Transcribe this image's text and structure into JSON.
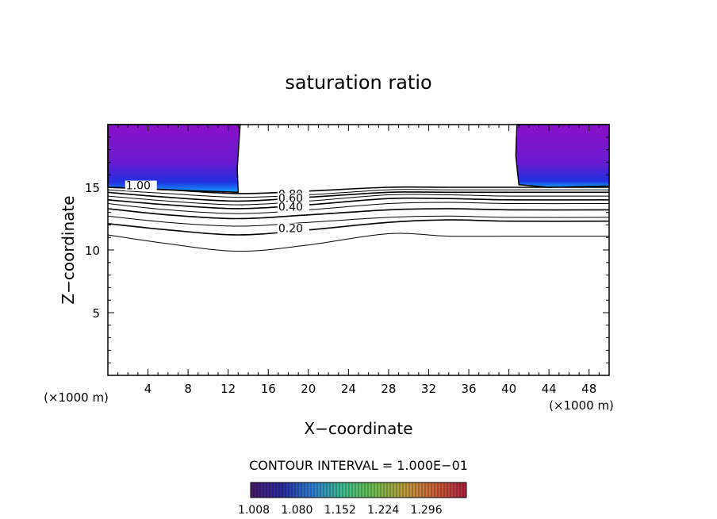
{
  "chart_data": {
    "type": "contour",
    "title": "saturation ratio",
    "xlabel": "X−coordinate",
    "ylabel": "Z−coordinate",
    "x_unit_label": "(×1000 m)",
    "z_unit_label": "(×1000 m)",
    "xlim": [
      0,
      50
    ],
    "ylim": [
      0,
      20
    ],
    "xticks": [
      4,
      8,
      12,
      16,
      20,
      24,
      28,
      32,
      36,
      40,
      44,
      48
    ],
    "yticks": [
      5,
      10,
      15
    ],
    "contour_interval_text": "CONTOUR INTERVAL = 1.000E−01",
    "colorbar": {
      "tick_labels": [
        "1.008",
        "1.080",
        "1.152",
        "1.224",
        "1.296"
      ],
      "colors": [
        "#4a1a6e",
        "#2a2aa0",
        "#2f7fd6",
        "#3fbf8f",
        "#6fbf4f",
        "#bf9f3f",
        "#d0603a",
        "#b01f3f"
      ]
    },
    "fill_color_outer": "#7f10c0",
    "fill_color_inner": "#1030e0",
    "contour_labels": [
      {
        "text": "1.00",
        "x": 1.8,
        "z": 14.9
      },
      {
        "text": "0.80",
        "x": 17.0,
        "z": 14.2
      },
      {
        "text": "0.60",
        "x": 17.0,
        "z": 13.9
      },
      {
        "text": "0.40",
        "x": 17.0,
        "z": 13.2
      },
      {
        "text": "0.20",
        "x": 17.0,
        "z": 11.5
      }
    ],
    "contour_lines": [
      {
        "level": 1.0,
        "points": [
          [
            0,
            15.0
          ],
          [
            6,
            14.8
          ],
          [
            13,
            14.5
          ],
          [
            20,
            14.7
          ],
          [
            28,
            15.0
          ],
          [
            34,
            15.0
          ],
          [
            40,
            15.0
          ],
          [
            50,
            15.0
          ]
        ]
      },
      {
        "level": 0.9,
        "points": [
          [
            0,
            14.8
          ],
          [
            6,
            14.5
          ],
          [
            13,
            14.2
          ],
          [
            20,
            14.4
          ],
          [
            28,
            14.8
          ],
          [
            34,
            14.8
          ],
          [
            40,
            14.8
          ],
          [
            50,
            14.8
          ]
        ]
      },
      {
        "level": 0.8,
        "points": [
          [
            0,
            14.6
          ],
          [
            6,
            14.2
          ],
          [
            13,
            13.9
          ],
          [
            20,
            14.2
          ],
          [
            28,
            14.6
          ],
          [
            34,
            14.6
          ],
          [
            40,
            14.6
          ],
          [
            50,
            14.6
          ]
        ]
      },
      {
        "level": 0.7,
        "points": [
          [
            0,
            14.3
          ],
          [
            6,
            13.9
          ],
          [
            13,
            13.6
          ],
          [
            20,
            13.9
          ],
          [
            28,
            14.4
          ],
          [
            34,
            14.4
          ],
          [
            40,
            14.3
          ],
          [
            50,
            14.3
          ]
        ]
      },
      {
        "level": 0.6,
        "points": [
          [
            0,
            14.0
          ],
          [
            6,
            13.6
          ],
          [
            13,
            13.3
          ],
          [
            20,
            13.6
          ],
          [
            28,
            14.1
          ],
          [
            34,
            14.1
          ],
          [
            40,
            14.0
          ],
          [
            50,
            14.0
          ]
        ]
      },
      {
        "level": 0.5,
        "points": [
          [
            0,
            13.7
          ],
          [
            6,
            13.2
          ],
          [
            13,
            12.9
          ],
          [
            20,
            13.2
          ],
          [
            28,
            13.7
          ],
          [
            34,
            13.8
          ],
          [
            40,
            13.7
          ],
          [
            50,
            13.7
          ]
        ]
      },
      {
        "level": 0.4,
        "points": [
          [
            0,
            13.3
          ],
          [
            6,
            12.8
          ],
          [
            13,
            12.5
          ],
          [
            20,
            12.8
          ],
          [
            28,
            13.2
          ],
          [
            34,
            13.3
          ],
          [
            40,
            13.2
          ],
          [
            50,
            13.2
          ]
        ]
      },
      {
        "level": 0.3,
        "points": [
          [
            0,
            12.7
          ],
          [
            6,
            12.2
          ],
          [
            13,
            11.9
          ],
          [
            20,
            12.2
          ],
          [
            28,
            12.6
          ],
          [
            34,
            12.7
          ],
          [
            40,
            12.6
          ],
          [
            50,
            12.6
          ]
        ]
      },
      {
        "level": 0.2,
        "points": [
          [
            0,
            12.1
          ],
          [
            6,
            11.6
          ],
          [
            13,
            11.2
          ],
          [
            20,
            11.6
          ],
          [
            28,
            12.2
          ],
          [
            34,
            12.4
          ],
          [
            40,
            12.3
          ],
          [
            50,
            12.3
          ]
        ]
      },
      {
        "level": 0.1,
        "points": [
          [
            0,
            11.2
          ],
          [
            6,
            10.5
          ],
          [
            13,
            9.9
          ],
          [
            20,
            10.4
          ],
          [
            28,
            11.3
          ],
          [
            34,
            11.1
          ],
          [
            40,
            11.1
          ],
          [
            50,
            11.1
          ]
        ]
      }
    ],
    "filled_regions": [
      {
        "points": [
          [
            0,
            20
          ],
          [
            13.2,
            20
          ],
          [
            12.9,
            16.5
          ],
          [
            13.0,
            14.6
          ],
          [
            6,
            14.8
          ],
          [
            0,
            15.0
          ]
        ]
      },
      {
        "points": [
          [
            40.8,
            20
          ],
          [
            50,
            20
          ],
          [
            50,
            15.1
          ],
          [
            44,
            15.0
          ],
          [
            41.0,
            15.2
          ],
          [
            40.7,
            17.5
          ]
        ]
      }
    ]
  }
}
